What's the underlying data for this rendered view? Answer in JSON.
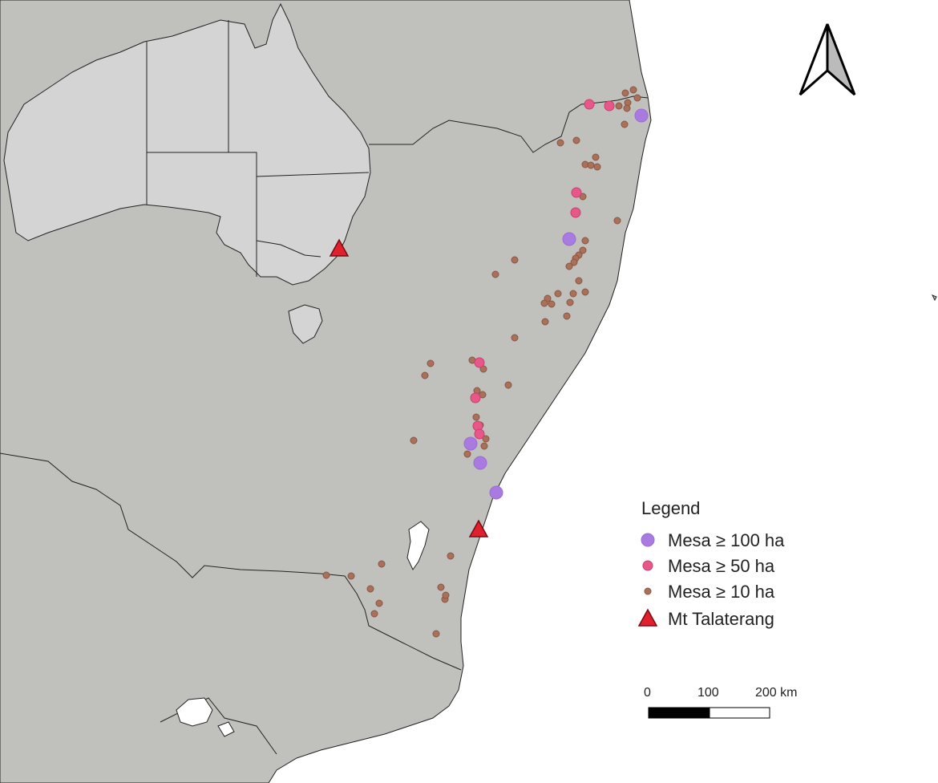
{
  "map": {
    "legend": {
      "title": "Legend",
      "items": [
        {
          "label": "Mesa ≥ 100 ha",
          "symbol": "circle-large",
          "color": "#a97be0"
        },
        {
          "label": "Mesa ≥ 50 ha",
          "symbol": "circle-medium",
          "color": "#e8578a"
        },
        {
          "label": "Mesa ≥ 10 ha",
          "symbol": "circle-small",
          "color": "#a9715a"
        },
        {
          "label": "Mt Talaterang",
          "symbol": "triangle",
          "color": "#e0202e"
        }
      ]
    },
    "scale_bar": {
      "ticks": [
        "0",
        "100",
        "200 km"
      ]
    },
    "north_arrow": {
      "icon": "north-arrow-icon"
    },
    "colors": {
      "land": "#c0c1bc",
      "inset_land": "#d4d4d4",
      "water": "#ffffff",
      "border": "#222222"
    }
  }
}
